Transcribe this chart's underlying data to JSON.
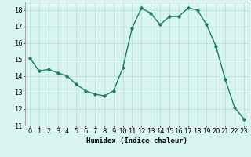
{
  "x": [
    0,
    1,
    2,
    3,
    4,
    5,
    6,
    7,
    8,
    9,
    10,
    11,
    12,
    13,
    14,
    15,
    16,
    17,
    18,
    19,
    20,
    21,
    22,
    23
  ],
  "y": [
    15.1,
    14.3,
    14.4,
    14.2,
    14.0,
    13.5,
    13.1,
    12.9,
    12.8,
    13.1,
    14.5,
    16.9,
    18.1,
    17.8,
    17.1,
    17.6,
    17.6,
    18.1,
    18.0,
    17.1,
    15.8,
    13.8,
    12.1,
    11.4
  ],
  "line_color": "#1a7a6e",
  "marker": "D",
  "markersize": 1.8,
  "linewidth": 1.0,
  "bg_color": "#d8f5f0",
  "grid_color": "#b8ddd8",
  "xlabel": "Humidex (Indice chaleur)",
  "xlabel_fontsize": 6.5,
  "tick_fontsize": 6,
  "ylim": [
    11,
    18.5
  ],
  "yticks": [
    11,
    12,
    13,
    14,
    15,
    16,
    17,
    18
  ],
  "xlim": [
    -0.5,
    23.5
  ],
  "xticks": [
    0,
    1,
    2,
    3,
    4,
    5,
    6,
    7,
    8,
    9,
    10,
    11,
    12,
    13,
    14,
    15,
    16,
    17,
    18,
    19,
    20,
    21,
    22,
    23
  ]
}
